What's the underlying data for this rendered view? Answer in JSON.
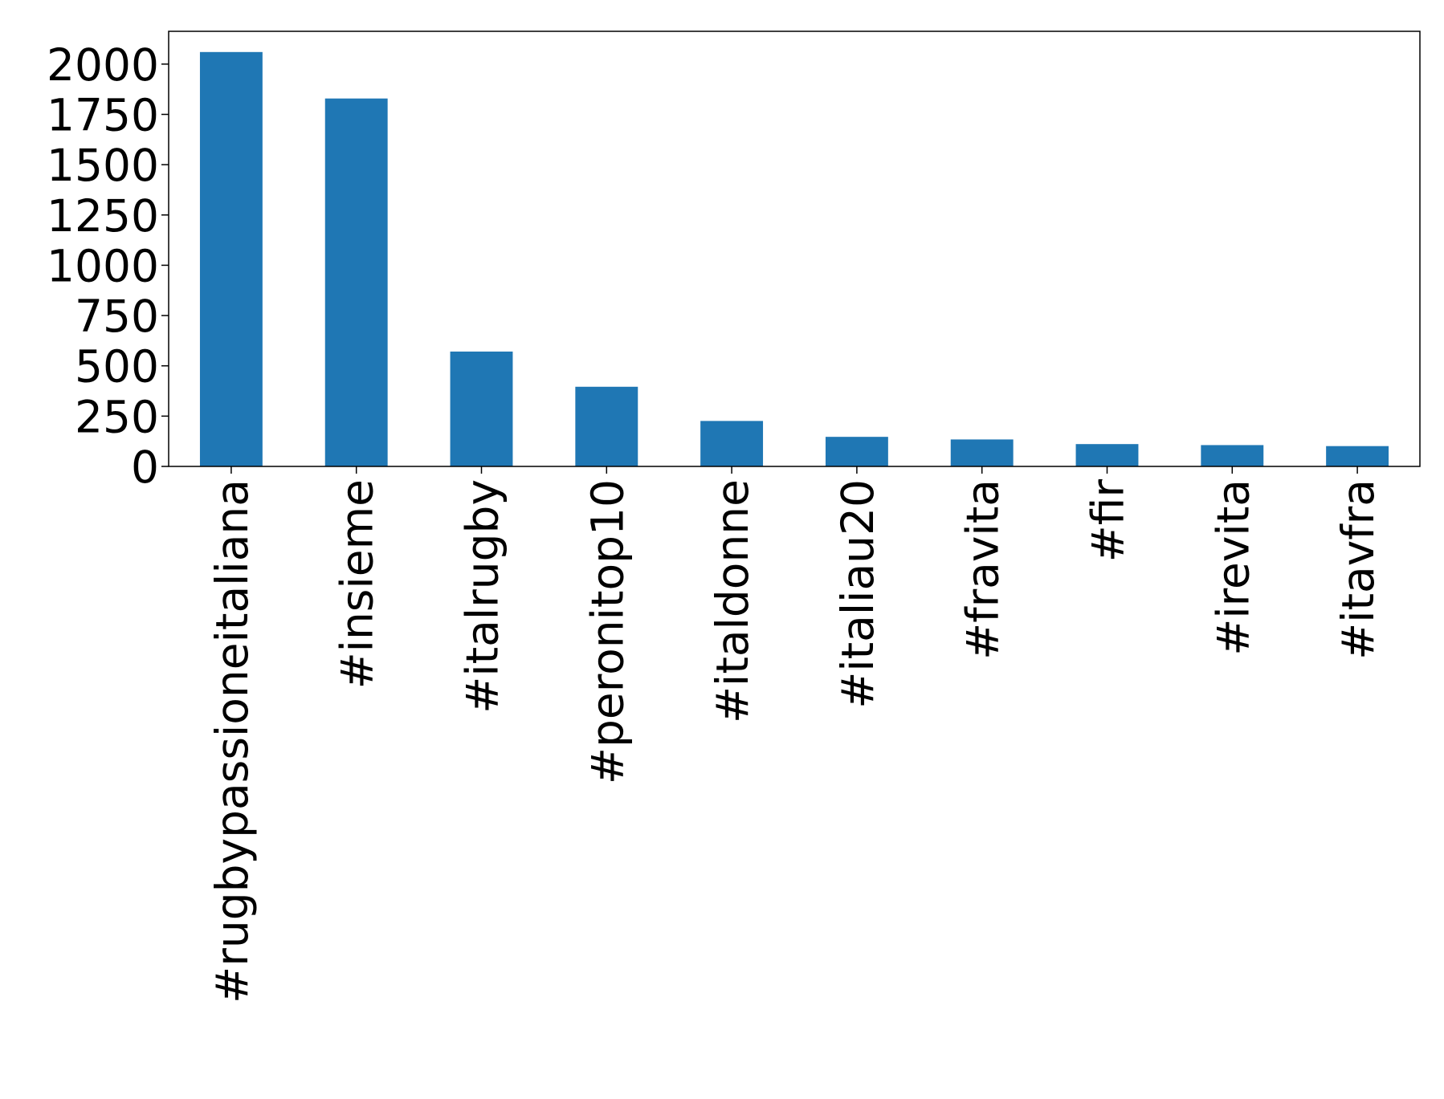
{
  "chart_data": {
    "type": "bar",
    "categories": [
      "#rugbypassioneitaliana",
      "#insieme",
      "#italrugby",
      "#peronitop10",
      "#italdonne",
      "#italiau20",
      "#fravita",
      "#fir",
      "#irevita",
      "#itavfra"
    ],
    "values": [
      2060,
      1829,
      571,
      396,
      226,
      147,
      134,
      111,
      106,
      101
    ],
    "color": "#1f77b4",
    "ylim": [
      0,
      2163
    ],
    "yticks": [
      0,
      250,
      500,
      750,
      1000,
      1250,
      1500,
      1750,
      2000
    ],
    "grid": false
  }
}
